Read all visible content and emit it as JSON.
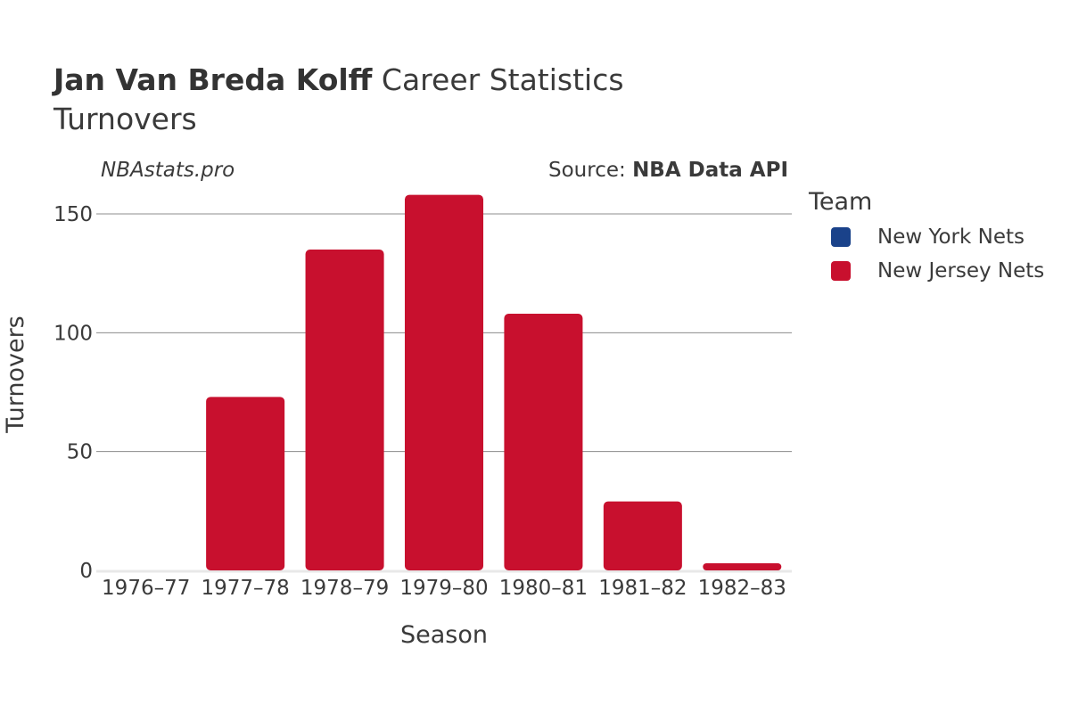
{
  "header": {
    "player_name": "Jan Van Breda Kolff",
    "title_suffix": "Career Statistics",
    "subtitle": "Turnovers"
  },
  "watermark": "NBAstats.pro",
  "source": {
    "prefix": "Source: ",
    "name": "NBA Data API"
  },
  "legend": {
    "title": "Team",
    "items": [
      {
        "label": "New York Nets",
        "color": "#1a428a"
      },
      {
        "label": "New Jersey Nets",
        "color": "#c8102e"
      }
    ]
  },
  "chart_data": {
    "type": "bar",
    "categories": [
      "1976–77",
      "1977–78",
      "1978–79",
      "1979–80",
      "1980–81",
      "1981–82",
      "1982–83"
    ],
    "series": [
      {
        "name": "New York Nets",
        "color": "#1a428a",
        "values": [
          0,
          null,
          null,
          null,
          null,
          null,
          null
        ]
      },
      {
        "name": "New Jersey Nets",
        "color": "#c8102e",
        "values": [
          null,
          73,
          135,
          158,
          108,
          29,
          3
        ]
      }
    ],
    "xlabel": "Season",
    "ylabel": "Turnovers",
    "ylim": [
      0,
      165
    ],
    "yticks": [
      0,
      50,
      100,
      150
    ],
    "grid": true,
    "legend_position": "right"
  }
}
